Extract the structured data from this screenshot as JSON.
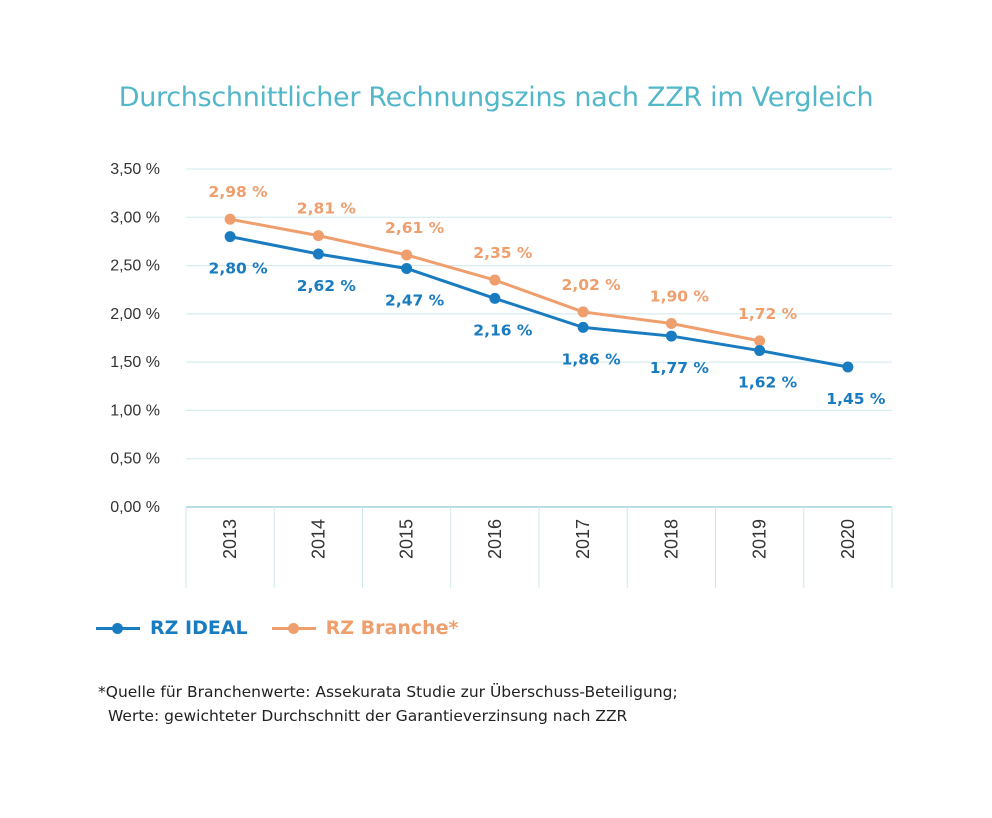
{
  "colors": {
    "title": "#52b7c9",
    "ideal": "#1a7cc0",
    "branche": "#ef9f6e",
    "grid": "#cfe8ee",
    "axis": "#9fd3de"
  },
  "chart_data": {
    "type": "line",
    "title": "Durchschnittlicher Rechnungszins nach ZZR im Vergleich",
    "xlabel": "",
    "ylabel": "",
    "categories": [
      "2013",
      "2014",
      "2015",
      "2016",
      "2017",
      "2018",
      "2019",
      "2020"
    ],
    "ylim": [
      0,
      3.5
    ],
    "yticks": [
      0,
      0.5,
      1.0,
      1.5,
      2.0,
      2.5,
      3.0,
      3.5
    ],
    "ytick_labels": [
      "0,00 %",
      "0,50 %",
      "1,00 %",
      "1,50 %",
      "2,00 %",
      "2,50 %",
      "3,00 %",
      "3,50 %"
    ],
    "grid": true,
    "legend_position": "bottom-left",
    "series": [
      {
        "key": "ideal",
        "name": "RZ IDEAL",
        "values": [
          2.8,
          2.62,
          2.47,
          2.16,
          1.86,
          1.77,
          1.62,
          1.45
        ],
        "labels": [
          "2,80 %",
          "2,62 %",
          "2,47 %",
          "2,16 %",
          "1,86 %",
          "1,77 %",
          "1,62 %",
          "1,45 %"
        ]
      },
      {
        "key": "branche",
        "name": "RZ Branche*",
        "values": [
          2.98,
          2.81,
          2.61,
          2.35,
          2.02,
          1.9,
          1.72,
          null
        ],
        "labels": [
          "2,98 %",
          "2,81 %",
          "2,61 %",
          "2,35 %",
          "2,02 %",
          "1,90 %",
          "1,72 %",
          null
        ]
      }
    ]
  },
  "legend": {
    "ideal_label": "RZ IDEAL",
    "branche_label": "RZ Branche*"
  },
  "footnote": {
    "line1": "*Quelle für Branchenwerte: Assekurata Studie zur Überschuss-Beteiligung;",
    "line2": "Werte: gewichteter Durchschnitt der Garantieverzinsung nach ZZR"
  }
}
